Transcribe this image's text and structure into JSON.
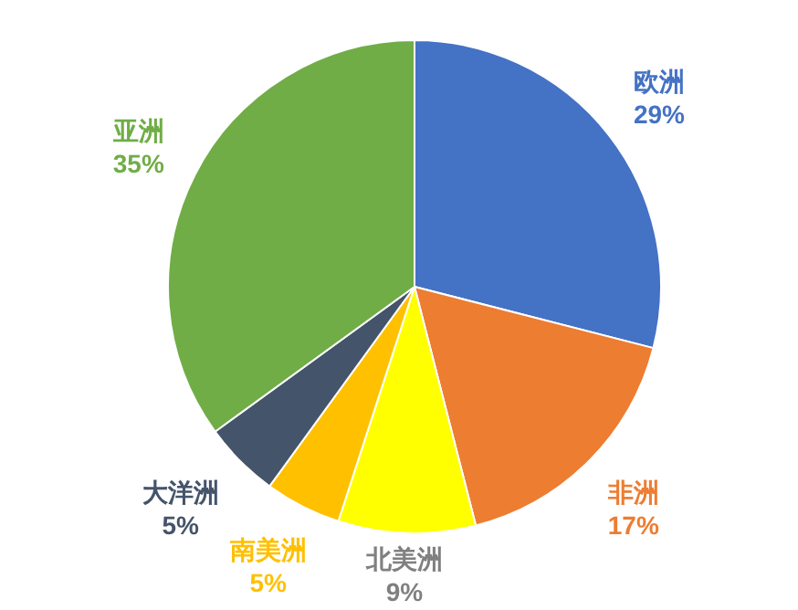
{
  "chart_data": {
    "type": "pie",
    "categories": [
      "欧洲",
      "非洲",
      "北美洲",
      "南美洲",
      "大洋洲",
      "亚洲"
    ],
    "values": [
      29,
      17,
      9,
      5,
      5,
      35
    ],
    "colors": [
      "#4472c4",
      "#ed7d31",
      "#ffff00",
      "#ffc000",
      "#44546a",
      "#70ad47"
    ],
    "value_labels": [
      "29%",
      "17%",
      "9%",
      "5%",
      "5%",
      "35%"
    ]
  }
}
